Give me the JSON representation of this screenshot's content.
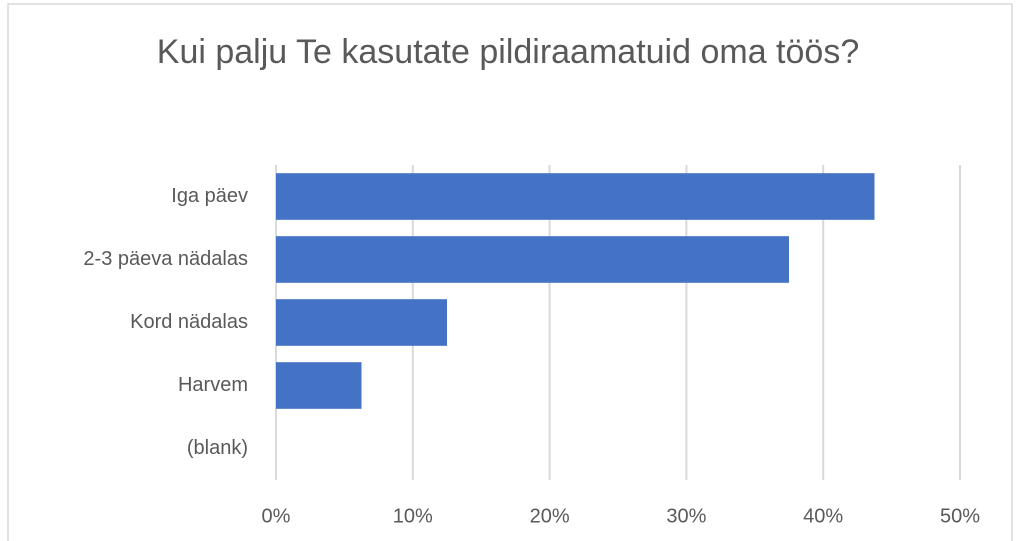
{
  "chart_data": {
    "type": "barh",
    "title": "Kui palju Te kasutate pildiraamatuid oma töös?",
    "categories": [
      "Iga päev",
      "2-3 päeva nädalas",
      "Kord nädalas",
      "Harvem",
      "(blank)"
    ],
    "values": [
      43.75,
      37.5,
      12.5,
      6.25,
      0
    ],
    "color": "#4472c4",
    "xlim": [
      0,
      50
    ],
    "xticks": [
      {
        "value": 0,
        "label": "0%"
      },
      {
        "value": 10,
        "label": "10%"
      },
      {
        "value": 20,
        "label": "20%"
      },
      {
        "value": 30,
        "label": "30%"
      },
      {
        "value": 40,
        "label": "40%"
      },
      {
        "value": 50,
        "label": "50%"
      }
    ],
    "grid": true
  }
}
